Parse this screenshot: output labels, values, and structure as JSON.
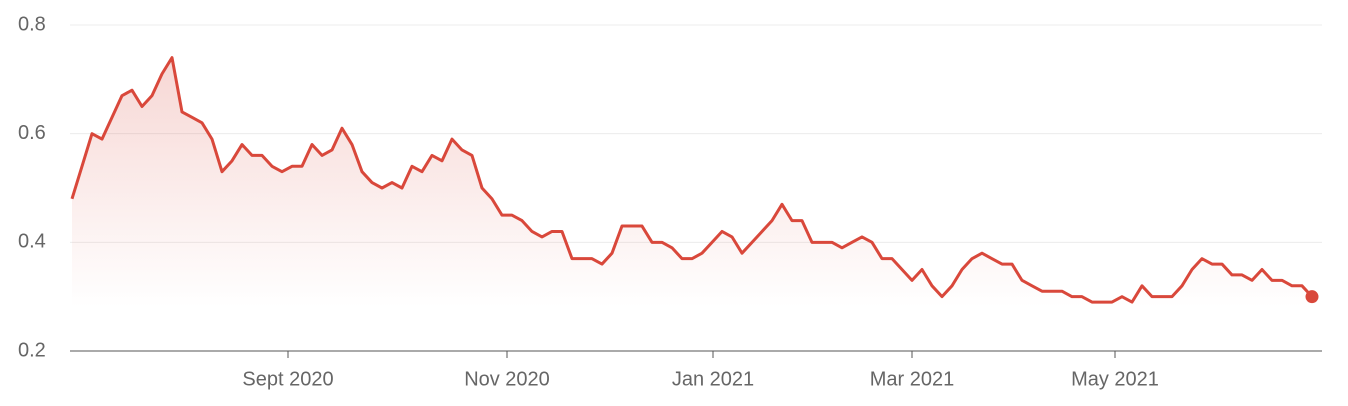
{
  "chart_data": {
    "type": "line",
    "x": [
      0,
      1,
      2,
      3,
      4,
      5,
      6,
      7,
      8,
      9,
      10,
      11,
      12,
      13,
      14,
      15,
      16,
      17,
      18,
      19,
      20,
      21,
      22,
      23,
      24,
      25,
      26,
      27,
      28,
      29,
      30,
      31,
      32,
      33,
      34,
      35,
      36,
      37,
      38,
      39,
      40,
      41,
      42,
      43,
      44,
      45,
      46,
      47,
      48,
      49,
      50,
      51,
      52,
      53,
      54,
      55,
      56,
      57,
      58,
      59,
      60,
      61,
      62,
      63,
      64,
      65,
      66,
      67,
      68,
      69,
      70,
      71,
      72,
      73,
      74,
      75,
      76,
      77,
      78,
      79,
      80,
      81,
      82,
      83,
      84,
      85,
      86,
      87,
      88,
      89,
      90,
      91,
      92,
      93,
      94,
      95,
      96,
      97,
      98,
      99,
      100,
      101,
      102,
      103,
      104,
      105,
      106,
      107,
      108,
      109,
      110,
      111,
      112,
      113,
      114,
      115,
      116,
      117,
      118,
      119,
      120,
      121,
      122,
      123,
      124
    ],
    "series": [
      {
        "color": "#d9483b",
        "values": [
          0.48,
          0.54,
          0.6,
          0.59,
          0.63,
          0.67,
          0.68,
          0.65,
          0.67,
          0.71,
          0.74,
          0.64,
          0.63,
          0.62,
          0.59,
          0.53,
          0.55,
          0.58,
          0.56,
          0.56,
          0.54,
          0.53,
          0.54,
          0.54,
          0.58,
          0.56,
          0.57,
          0.61,
          0.58,
          0.53,
          0.51,
          0.5,
          0.51,
          0.5,
          0.54,
          0.53,
          0.56,
          0.55,
          0.59,
          0.57,
          0.56,
          0.5,
          0.48,
          0.45,
          0.45,
          0.44,
          0.42,
          0.41,
          0.42,
          0.42,
          0.37,
          0.37,
          0.37,
          0.36,
          0.38,
          0.43,
          0.43,
          0.43,
          0.4,
          0.4,
          0.39,
          0.37,
          0.37,
          0.38,
          0.4,
          0.42,
          0.41,
          0.38,
          0.4,
          0.42,
          0.44,
          0.47,
          0.44,
          0.44,
          0.4,
          0.4,
          0.4,
          0.39,
          0.4,
          0.41,
          0.4,
          0.37,
          0.37,
          0.35,
          0.33,
          0.35,
          0.32,
          0.3,
          0.32,
          0.35,
          0.37,
          0.38,
          0.37,
          0.36,
          0.36,
          0.33,
          0.32,
          0.31,
          0.31,
          0.31,
          0.3,
          0.3,
          0.29,
          0.29,
          0.29,
          0.3,
          0.29,
          0.32,
          0.3,
          0.3,
          0.3,
          0.32,
          0.35,
          0.37,
          0.36,
          0.36,
          0.34,
          0.34,
          0.33,
          0.35,
          0.33,
          0.33,
          0.32,
          0.32,
          0.3
        ]
      }
    ],
    "xlim": [
      -0.2,
      125
    ],
    "xticks": [
      {
        "value": 21.6,
        "label": "Sept 2020"
      },
      {
        "value": 43.5,
        "label": "Nov 2020"
      },
      {
        "value": 64.1,
        "label": "Jan 2021"
      },
      {
        "value": 84,
        "label": "Mar 2021"
      },
      {
        "value": 104.3,
        "label": "May 2021"
      }
    ],
    "ylim": [
      0.2,
      0.8
    ],
    "yticks": [
      0.2,
      0.4,
      0.6,
      0.8
    ],
    "grid": true
  }
}
